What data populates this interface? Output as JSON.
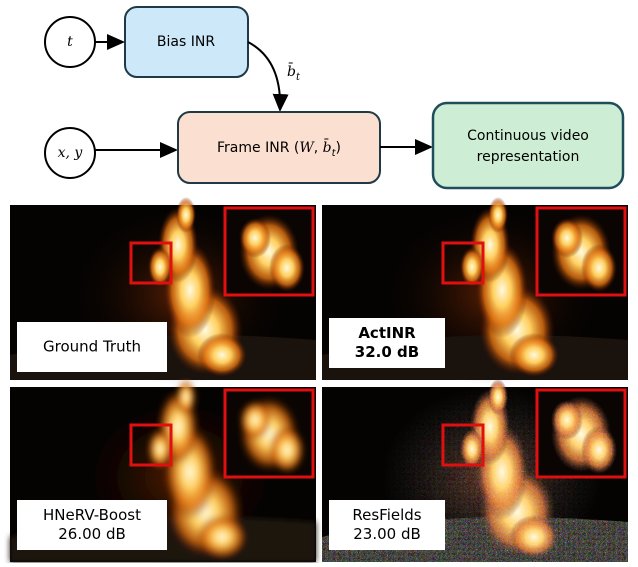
{
  "diagram": {
    "nodes": [
      {
        "label": "t"
      },
      {
        "label": "Bias INR"
      },
      {
        "label": "x, y"
      },
      {
        "label_parts": [
          "Frame INR (",
          "W",
          ", ",
          "b̄",
          "t",
          ")"
        ]
      },
      {
        "label_lines": [
          "Continuous video",
          "representation"
        ]
      }
    ],
    "edge_label": {
      "base": "b̄",
      "sub": "t"
    }
  },
  "panels": [
    {
      "lines": [
        "Ground Truth"
      ],
      "bold": false,
      "blur": false
    },
    {
      "lines": [
        "ActINR",
        "32.0 dB"
      ],
      "bold": true,
      "blur": false
    },
    {
      "lines": [
        "HNeRV-Boost",
        "26.00 dB"
      ],
      "bold": false,
      "blur": true
    },
    {
      "lines": [
        "ResFields",
        "23.00 dB"
      ],
      "bold": false,
      "blur": false,
      "noise": true
    }
  ]
}
